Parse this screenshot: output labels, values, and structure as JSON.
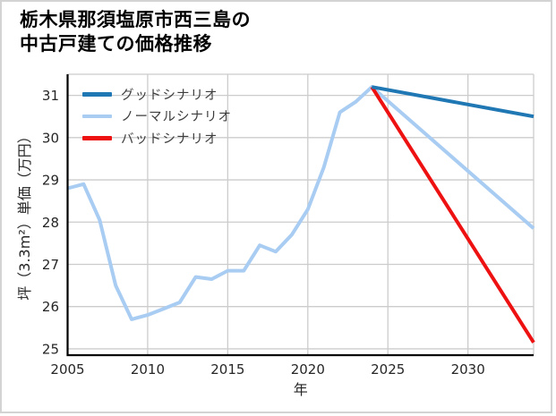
{
  "page": {
    "title_line1": "栃木県那須塩原市西三島の",
    "title_line2": "中古戸建ての価格推移"
  },
  "chart_data": {
    "type": "line",
    "title": "栃木県那須塩原市西三島の中古戸建ての価格推移",
    "xlabel": "年",
    "ylabel": "坪（3.3m²）単価（万円）",
    "x_ticks": [
      2005,
      2010,
      2015,
      2020,
      2025,
      2030
    ],
    "y_ticks": [
      25,
      26,
      27,
      28,
      29,
      30,
      31
    ],
    "xlim": [
      2005,
      2034.1
    ],
    "ylim": [
      24.85,
      31.5
    ],
    "grid": true,
    "grid_color": "#cccccc",
    "axis_color": "#000000",
    "tick_label_color": "#262626",
    "legend_position": "upper-left",
    "series": [
      {
        "key": "good",
        "name": "グッドシナリオ",
        "color": "#1f77b4",
        "x": [
          2024,
          2034.1
        ],
        "values": [
          31.2,
          30.5
        ]
      },
      {
        "key": "normal",
        "name": "ノーマルシナリオ",
        "color": "#a8ccf2",
        "x": [
          2005,
          2006,
          2007,
          2008,
          2009,
          2010,
          2011,
          2012,
          2013,
          2014,
          2015,
          2016,
          2017,
          2018,
          2019,
          2020,
          2021,
          2022,
          2023,
          2024,
          2034.1
        ],
        "values": [
          28.8,
          28.9,
          28.05,
          26.5,
          25.7,
          25.8,
          25.95,
          26.1,
          26.7,
          26.65,
          26.85,
          26.85,
          27.45,
          27.3,
          27.7,
          28.3,
          29.3,
          30.6,
          30.85,
          31.2,
          27.85
        ]
      },
      {
        "key": "bad",
        "name": "バッドシナリオ",
        "color": "#ee1111",
        "x": [
          2024,
          2034.1
        ],
        "values": [
          31.2,
          25.15
        ]
      }
    ]
  }
}
